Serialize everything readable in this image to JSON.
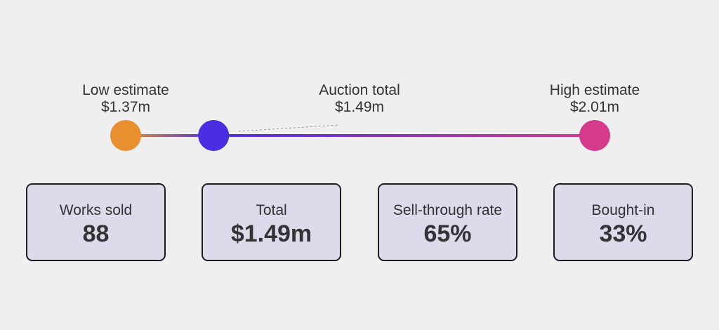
{
  "range": {
    "low": {
      "label": "Low estimate",
      "value_text": "$1.37m",
      "value": 1.37,
      "color": "#e8902f"
    },
    "actual": {
      "label": "Auction total",
      "value_text": "$1.49m",
      "value": 1.49,
      "color": "#4a2fe2"
    },
    "high": {
      "label": "High estimate",
      "value_text": "$2.01m",
      "value": 2.01,
      "color": "#d63a8c"
    }
  },
  "stats": [
    {
      "label": "Works sold",
      "value": "88"
    },
    {
      "label": "Total",
      "value": "$1.49m"
    },
    {
      "label": "Sell-through rate",
      "value": "65%"
    },
    {
      "label": "Bought-in",
      "value": "33%"
    }
  ],
  "colors": {
    "background": "#efefef",
    "card_fill": "#dcdaeb",
    "card_border": "#1e1e1e",
    "text": "#333333"
  }
}
